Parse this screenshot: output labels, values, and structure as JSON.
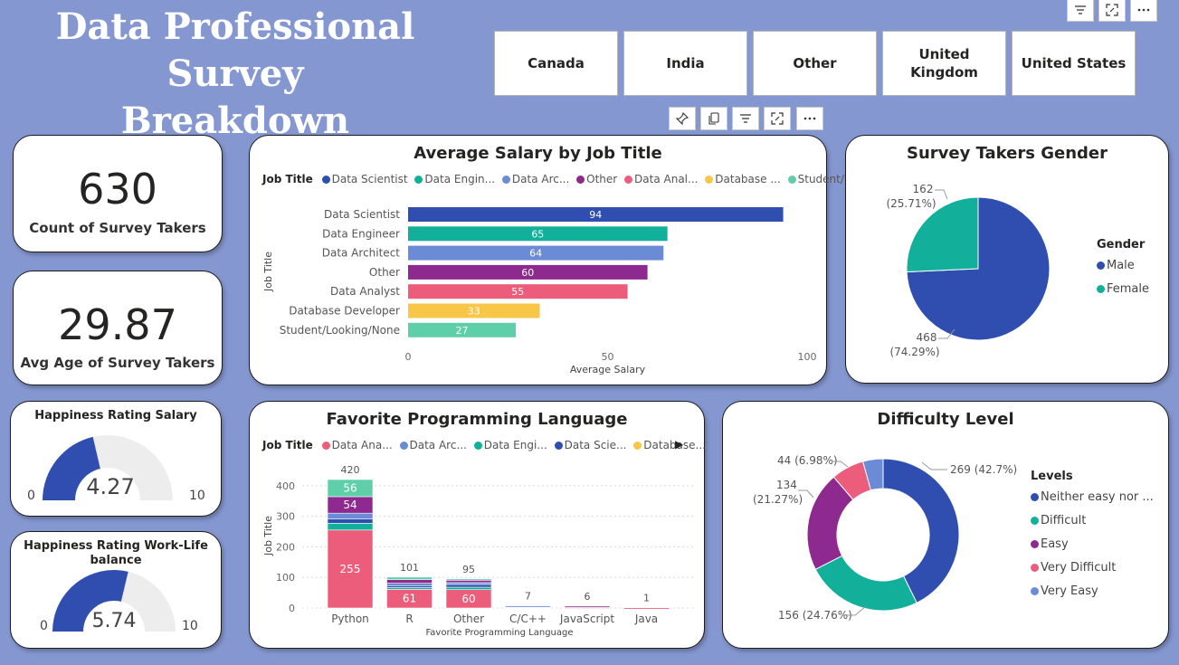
{
  "title": {
    "line1": "Data Professional Survey",
    "line2": "Breakdown"
  },
  "country_slicer": [
    "Canada",
    "India",
    "Other",
    "United Kingdom",
    "United States"
  ],
  "kpis": {
    "count": {
      "value": "630",
      "label": "Count of Survey Takers"
    },
    "age": {
      "value": "29.87",
      "label": "Avg Age of Survey Takers"
    }
  },
  "gauges": {
    "salary": {
      "title": "Happiness Rating Salary",
      "value": "4.27",
      "min": "0",
      "max": "10",
      "fraction": 0.427
    },
    "worklife": {
      "title": "Happiness Rating Work-Life balance",
      "value": "5.74",
      "min": "0",
      "max": "10",
      "fraction": 0.574
    }
  },
  "salary_chart": {
    "title": "Average Salary by Job Title",
    "legend_title": "Job Title",
    "legend": [
      "Data Scientist",
      "Data Engin...",
      "Data Arc...",
      "Other",
      "Data Anal...",
      "Database ...",
      "Student/..."
    ],
    "xlabel": "Average Salary",
    "ylabel": "Job Title",
    "ticks": [
      "0",
      "50",
      "100"
    ]
  },
  "gender_chart": {
    "title": "Survey Takers Gender",
    "legend_title": "Gender",
    "legend": [
      "Male",
      "Female"
    ],
    "labels": {
      "female_count": "162",
      "female_pct": "(25.71%)",
      "male_count": "468",
      "male_pct": "(74.29%)"
    }
  },
  "language_chart": {
    "title": "Favorite Programming Language",
    "legend_title": "Job Title",
    "legend": [
      "Data Ana...",
      "Data Arc...",
      "Data Engi...",
      "Data Scie...",
      "Database..."
    ],
    "xlabel": "Favorite Programming Language",
    "ylabel": "Job Title",
    "yticks": [
      "0",
      "100",
      "200",
      "300",
      "400"
    ]
  },
  "difficulty_chart": {
    "title": "Difficulty Level",
    "legend_title": "Levels",
    "legend": [
      "Neither easy nor ...",
      "Difficult",
      "Easy",
      "Very Difficult",
      "Very Easy"
    ],
    "labels": [
      "269 (42.7%)",
      "156 (24.76%)",
      "134",
      "(21.27%)",
      "44 (6.98%)"
    ]
  },
  "colors": {
    "background": "#8597d0",
    "data_scientist": "#2f4eb0",
    "data_engineer": "#12b09a",
    "data_architect": "#6b8bd6",
    "other": "#8e2a8f",
    "data_analyst": "#ec5d7b",
    "database_dev": "#f8c748",
    "student": "#5ecfa8",
    "male": "#2f4eb0",
    "female": "#12b09a"
  },
  "chart_data": [
    {
      "type": "bar",
      "title": "Average Salary by Job Title",
      "orientation": "horizontal",
      "categories": [
        "Data Scientist",
        "Data Engineer",
        "Data Architect",
        "Other",
        "Data Analyst",
        "Database Developer",
        "Student/Looking/None"
      ],
      "values": [
        94,
        65,
        64,
        60,
        55,
        33,
        27
      ],
      "xlabel": "Average Salary",
      "ylabel": "Job Title",
      "xlim": [
        0,
        100
      ]
    },
    {
      "type": "pie",
      "title": "Survey Takers Gender",
      "categories": [
        "Male",
        "Female"
      ],
      "values": [
        468,
        162
      ],
      "percent": [
        74.29,
        25.71
      ]
    },
    {
      "type": "bar",
      "stacked": true,
      "title": "Favorite Programming Language",
      "categories": [
        "Python",
        "R",
        "Other",
        "C/C++",
        "JavaScript",
        "Java"
      ],
      "totals": [
        420,
        101,
        95,
        7,
        6,
        1
      ],
      "series": [
        {
          "name": "Data Ana...",
          "values": [
            255,
            61,
            60,
            4,
            3,
            1
          ]
        },
        {
          "name": "Data Arc...",
          "values": [
            19,
            8,
            6,
            1,
            2,
            0
          ]
        },
        {
          "name": "Data Engi...",
          "values": [
            22,
            6,
            8,
            1,
            0,
            0
          ]
        },
        {
          "name": "Data Scie...",
          "values": [
            14,
            6,
            9,
            1,
            0,
            0
          ]
        },
        {
          "name": "Other",
          "values": [
            54,
            12,
            8,
            0,
            1,
            0
          ]
        },
        {
          "name": "Student",
          "values": [
            56,
            8,
            4,
            0,
            0,
            0
          ]
        }
      ],
      "xlabel": "Favorite Programming Language",
      "ylabel": "Job Title",
      "ylim": [
        0,
        420
      ]
    },
    {
      "type": "pie",
      "donut": true,
      "title": "Difficulty Level",
      "categories": [
        "Neither easy nor ...",
        "Difficult",
        "Easy",
        "Very Difficult",
        "Very Easy"
      ],
      "values": [
        269,
        156,
        134,
        44,
        27
      ],
      "percent": [
        42.7,
        24.76,
        21.27,
        6.98,
        4.29
      ]
    }
  ]
}
